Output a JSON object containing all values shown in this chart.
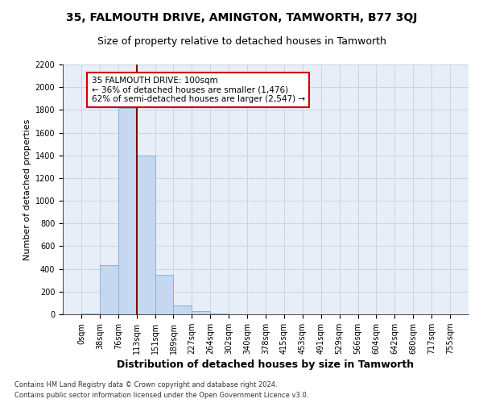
{
  "title_line1": "35, FALMOUTH DRIVE, AMINGTON, TAMWORTH, B77 3QJ",
  "title_line2": "Size of property relative to detached houses in Tamworth",
  "xlabel": "Distribution of detached houses by size in Tamworth",
  "ylabel": "Number of detached properties",
  "footer_line1": "Contains HM Land Registry data © Crown copyright and database right 2024.",
  "footer_line2": "Contains public sector information licensed under the Open Government Licence v3.0.",
  "bin_labels": [
    "0sqm",
    "38sqm",
    "76sqm",
    "113sqm",
    "151sqm",
    "189sqm",
    "227sqm",
    "264sqm",
    "302sqm",
    "340sqm",
    "378sqm",
    "415sqm",
    "453sqm",
    "491sqm",
    "529sqm",
    "566sqm",
    "604sqm",
    "642sqm",
    "680sqm",
    "717sqm",
    "755sqm"
  ],
  "bar_values": [
    10,
    430,
    1820,
    1400,
    350,
    75,
    25,
    5,
    2,
    0,
    0,
    0,
    0,
    0,
    0,
    0,
    0,
    0,
    0,
    0
  ],
  "bar_color": "#c5d8f0",
  "bar_edge_color": "#7aadd4",
  "property_line_x": 3.0,
  "property_line_color": "#8b0000",
  "annotation_text": "35 FALMOUTH DRIVE: 100sqm\n← 36% of detached houses are smaller (1,476)\n62% of semi-detached houses are larger (2,547) →",
  "annotation_box_color": "white",
  "annotation_box_edgecolor": "#cc0000",
  "ylim": [
    0,
    2200
  ],
  "yticks": [
    0,
    200,
    400,
    600,
    800,
    1000,
    1200,
    1400,
    1600,
    1800,
    2000,
    2200
  ],
  "grid_color": "#c8d4e4",
  "bg_color": "#e8eef8",
  "title1_fontsize": 10,
  "title2_fontsize": 9,
  "xlabel_fontsize": 9,
  "ylabel_fontsize": 8,
  "tick_fontsize": 7,
  "footer_fontsize": 6,
  "annot_fontsize": 7.5
}
